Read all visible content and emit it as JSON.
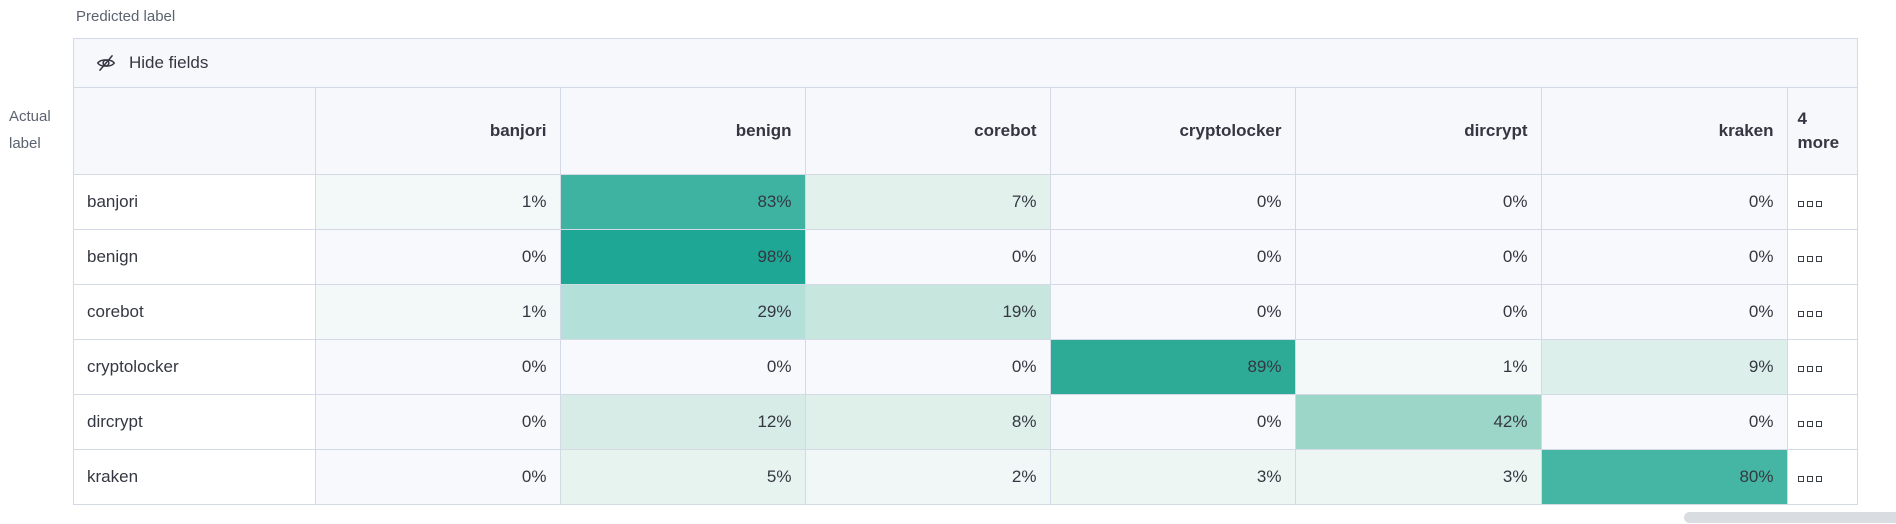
{
  "labels": {
    "predicted_axis": "Predicted label",
    "actual_axis_line1": "Actual",
    "actual_axis_line2": "label"
  },
  "toolbar": {
    "hide_fields_label": "Hide fields",
    "icon": "eye-closed-icon"
  },
  "grid": {
    "more_cell_icon": "boxes-horizontal-icon"
  },
  "chart_data": {
    "type": "heatmap",
    "title": "",
    "xlabel": "Predicted label",
    "ylabel": "Actual label",
    "columns": [
      "banjori",
      "benign",
      "corebot",
      "cryptolocker",
      "dircrypt",
      "kraken"
    ],
    "more_columns_header": [
      "4",
      "more"
    ],
    "rows": [
      "banjori",
      "benign",
      "corebot",
      "cryptolocker",
      "dircrypt",
      "kraken"
    ],
    "unit": "%",
    "values_percent": [
      [
        1,
        83,
        7,
        0,
        0,
        0
      ],
      [
        0,
        98,
        0,
        0,
        0,
        0
      ],
      [
        1,
        29,
        19,
        0,
        0,
        0
      ],
      [
        0,
        0,
        0,
        89,
        1,
        9
      ],
      [
        0,
        12,
        8,
        0,
        42,
        0
      ],
      [
        0,
        5,
        2,
        3,
        3,
        80
      ]
    ],
    "color_scale": {
      "0": "#f7f9fc",
      "1": "#f3f8f9",
      "2": "#f1f7f6",
      "3": "#edf6f3",
      "5": "#e7f3ef",
      "7": "#e2f1ec",
      "8": "#dff0eb",
      "9": "#ddefea",
      "12": "#d7ece6",
      "19": "#c7e6de",
      "29": "#b3e0d9",
      "42": "#9bd6c8",
      "80": "#45b6a3",
      "83": "#3fb3a1",
      "89": "#2dab97",
      "98": "#1ea795"
    },
    "legend": "none",
    "grid_lines": true
  },
  "colors": {
    "panel_bg": "#f7f8fc",
    "border": "#d3dae6",
    "text": "#343741",
    "axis_text": "#5b6370",
    "scroll_thumb": "#d9dce1",
    "heat_max": "#1ea795"
  }
}
